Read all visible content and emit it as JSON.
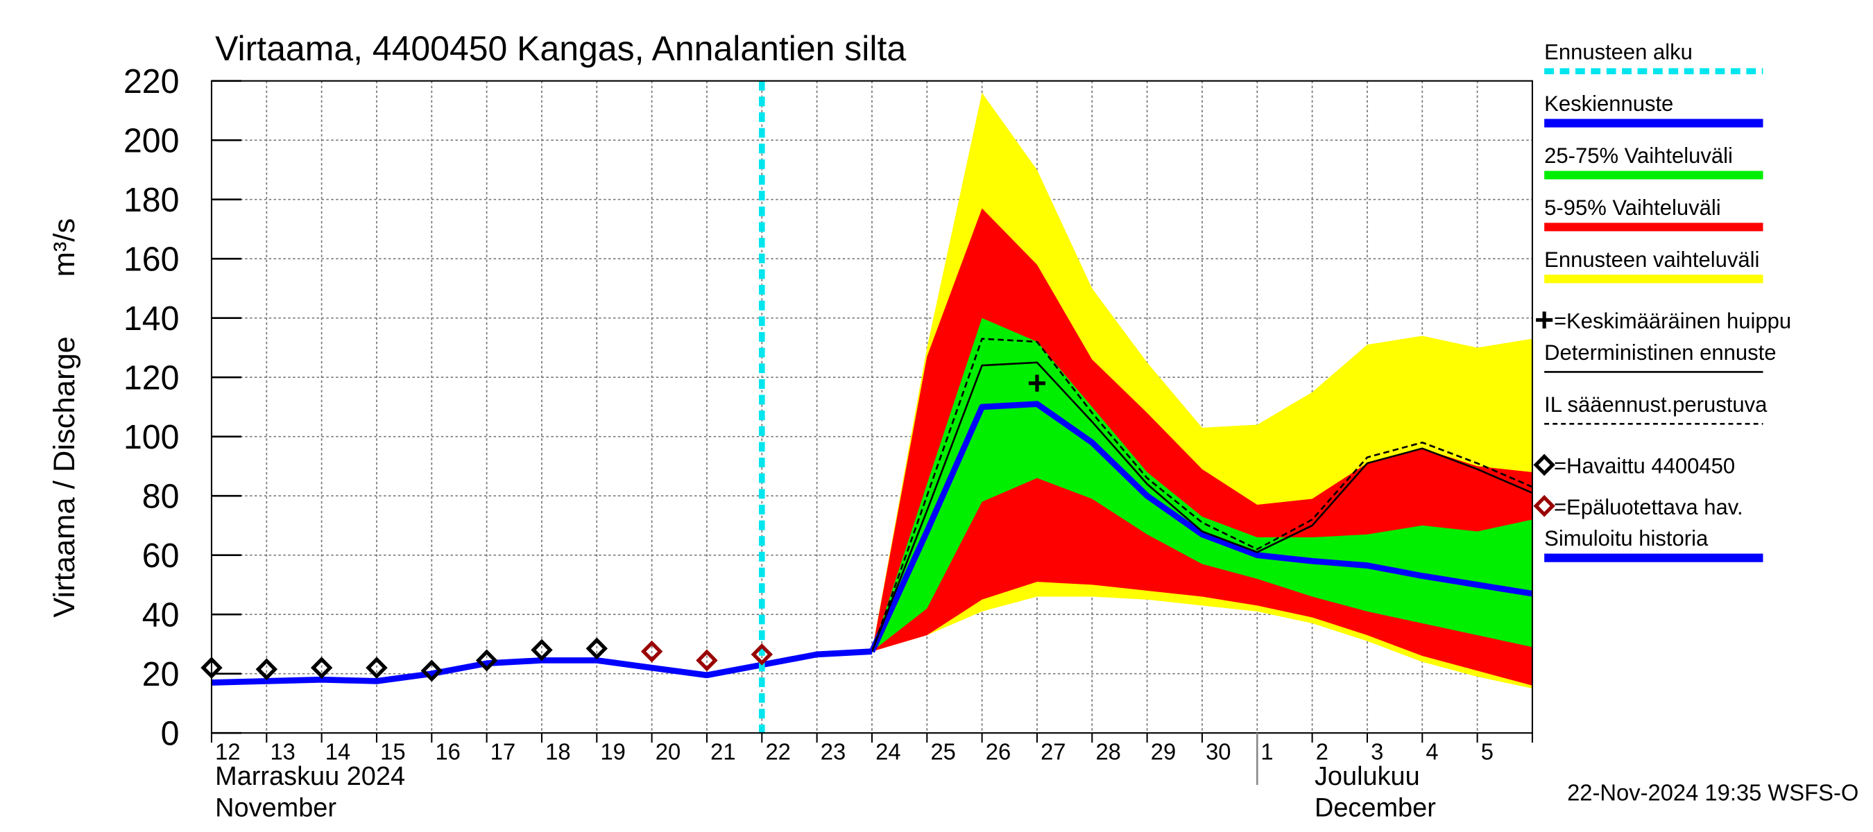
{
  "chart_data": {
    "type": "line",
    "title": "Virtaama, 4400450 Kangas, Annalantien silta",
    "y_label": "Virtaama / Discharge",
    "y_unit": "m³/s",
    "ylim": [
      0,
      220
    ],
    "yticks": [
      0,
      20,
      40,
      60,
      80,
      100,
      120,
      140,
      160,
      180,
      200,
      220
    ],
    "grid": true,
    "categories": [
      "12",
      "13",
      "14",
      "15",
      "16",
      "17",
      "18",
      "19",
      "20",
      "21",
      "22",
      "23",
      "24",
      "25",
      "26",
      "27",
      "28",
      "29",
      "30",
      "1",
      "2",
      "3",
      "4",
      "5",
      null
    ],
    "months": [
      {
        "fi": "Marraskuu 2024",
        "en": "November",
        "start": 0
      },
      {
        "fi": "Joulukuu",
        "en": "December",
        "start": 19
      }
    ],
    "footer": "22-Nov-2024 19:35 WSFS-O",
    "series": [
      {
        "name": "Ennusteen alku",
        "kind": "vline",
        "color": "#00e5ee",
        "x_index": 10
      },
      {
        "name": "Keskiennuste",
        "kind": "line",
        "color": "#0000ff",
        "width": 5,
        "values": [
          null,
          null,
          null,
          null,
          null,
          null,
          null,
          null,
          null,
          null,
          null,
          null,
          27.5,
          68,
          110,
          111,
          98,
          80,
          67,
          60,
          58,
          56.5,
          53,
          50,
          47
        ]
      },
      {
        "name": "25-75% Vaihteluväli",
        "kind": "band",
        "color": "#00ee00",
        "values": [
          null,
          null,
          null,
          null,
          null,
          null,
          null,
          null,
          null,
          null,
          null,
          null,
          27.5,
          84,
          140,
          132,
          110,
          88,
          73,
          66,
          66,
          67,
          70,
          68,
          72
        ],
        "lower": [
          null,
          null,
          null,
          null,
          null,
          null,
          null,
          null,
          null,
          null,
          null,
          null,
          27.5,
          42,
          78,
          86,
          79,
          67,
          57,
          52,
          46,
          41,
          37,
          33,
          29
        ]
      },
      {
        "name": "5-95% Vaihteluväli",
        "kind": "band",
        "color": "#ff0000",
        "values": [
          null,
          null,
          null,
          null,
          null,
          null,
          null,
          null,
          null,
          null,
          null,
          null,
          27.5,
          127,
          177,
          158,
          126,
          108,
          89,
          77,
          79,
          91,
          96,
          90,
          88
        ],
        "lower": [
          null,
          null,
          null,
          null,
          null,
          null,
          null,
          null,
          null,
          null,
          null,
          null,
          27.5,
          33,
          45,
          51,
          50,
          48,
          46,
          43,
          39,
          33,
          26,
          21,
          16
        ]
      },
      {
        "name": "Ennusteen vaihteluväli",
        "kind": "band",
        "color": "#ffff00",
        "values": [
          null,
          null,
          null,
          null,
          null,
          null,
          null,
          null,
          null,
          null,
          null,
          null,
          27.5,
          130,
          216,
          190,
          150,
          125,
          103,
          104,
          115,
          131,
          134,
          130,
          133
        ],
        "lower": [
          null,
          null,
          null,
          null,
          null,
          null,
          null,
          null,
          null,
          null,
          null,
          null,
          27.5,
          33,
          41,
          46,
          46,
          45,
          43,
          41,
          37,
          31,
          24,
          19,
          15
        ]
      },
      {
        "name": "=Keskimääräinen huippu",
        "kind": "marker",
        "marker": "plus",
        "color": "#000000",
        "values": [
          null,
          null,
          null,
          null,
          null,
          null,
          null,
          null,
          null,
          null,
          null,
          null,
          null,
          null,
          null,
          118,
          null,
          null,
          null,
          null,
          null,
          null,
          null,
          null,
          null
        ]
      },
      {
        "name": "Deterministinen ennuste",
        "kind": "line",
        "color": "#000000",
        "width": 1.5,
        "values": [
          null,
          null,
          null,
          null,
          null,
          null,
          null,
          null,
          null,
          null,
          null,
          null,
          27.5,
          75,
          124,
          125,
          105,
          84,
          68,
          61,
          70,
          91,
          96,
          89,
          81
        ]
      },
      {
        "name": "IL sääennust.perustuva",
        "kind": "line",
        "color": "#000000",
        "width": 1.5,
        "dash": true,
        "values": [
          null,
          null,
          null,
          null,
          null,
          null,
          null,
          null,
          null,
          null,
          null,
          null,
          27.5,
          80,
          133,
          132,
          108,
          86,
          71,
          62,
          72,
          93,
          98,
          91,
          83
        ]
      },
      {
        "name": "=Havaittu 4400450",
        "kind": "marker",
        "marker": "diamond",
        "color": "#000000",
        "values": [
          22,
          21.5,
          22,
          22,
          21,
          24.5,
          28,
          28.5,
          null,
          null,
          null,
          null,
          null,
          null,
          null,
          null,
          null,
          null,
          null,
          null,
          null,
          null,
          null,
          null,
          null
        ]
      },
      {
        "name": "=Epäluotettava hav.",
        "kind": "marker",
        "marker": "diamond",
        "color": "#990000",
        "values": [
          null,
          null,
          null,
          null,
          null,
          null,
          null,
          null,
          27.5,
          24.5,
          26.5,
          null,
          null,
          null,
          null,
          null,
          null,
          null,
          null,
          null,
          null,
          null,
          null,
          null,
          null
        ]
      },
      {
        "name": "Simuloitu historia",
        "kind": "line",
        "color": "#0000ff",
        "width": 5,
        "values": [
          17,
          17.5,
          18,
          17.5,
          20,
          23.5,
          24.5,
          24.5,
          22,
          19.5,
          23,
          26.5,
          27.5,
          null,
          null,
          null,
          null,
          null,
          null,
          null,
          null,
          null,
          null,
          null,
          null
        ]
      }
    ]
  }
}
